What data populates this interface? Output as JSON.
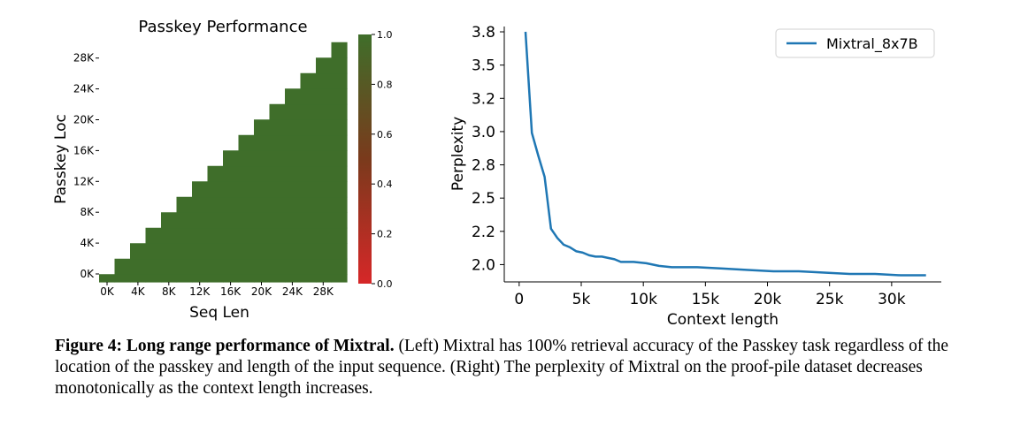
{
  "chart_data": [
    {
      "type": "heatmap",
      "title": "Passkey Performance",
      "xlabel": "Seq Len",
      "ylabel": "Passkey Loc",
      "x_ticks": [
        "0K",
        "4K",
        "8K",
        "12K",
        "16K",
        "20K",
        "24K",
        "28K"
      ],
      "y_ticks": [
        "0K",
        "4K",
        "8K",
        "12K",
        "16K",
        "20K",
        "24K",
        "28K"
      ],
      "x_bins": [
        0,
        2000,
        4000,
        6000,
        8000,
        10000,
        12000,
        14000,
        16000,
        18000,
        20000,
        22000,
        24000,
        26000,
        28000,
        30000,
        32000
      ],
      "y_bins": [
        0,
        1000,
        3000,
        5000,
        7000,
        9000,
        11000,
        13000,
        15000,
        17000,
        19000,
        21000,
        23000,
        25000,
        27000,
        29000,
        31000,
        32000
      ],
      "value": 1.0,
      "colorbar": {
        "ticks": [
          "0.0",
          "0.2",
          "0.4",
          "0.6",
          "0.8",
          "1.0"
        ],
        "range": [
          0,
          1
        ],
        "low_color": "#d62728",
        "high_color": "#3f6e2a"
      },
      "cell_color": "#3f6e2a"
    },
    {
      "type": "line",
      "xlabel": "Context length",
      "ylabel": "Perplexity",
      "x_ticks": [
        {
          "v": 0,
          "label": "0"
        },
        {
          "v": 5000,
          "label": "5k"
        },
        {
          "v": 10000,
          "label": "10k"
        },
        {
          "v": 15000,
          "label": "15k"
        },
        {
          "v": 20000,
          "label": "20k"
        },
        {
          "v": 25000,
          "label": "25k"
        },
        {
          "v": 30000,
          "label": "30k"
        }
      ],
      "y_ticks": [
        {
          "v": 2.0,
          "label": "2.0"
        },
        {
          "v": 2.25,
          "label": "2.2"
        },
        {
          "v": 2.5,
          "label": "2.5"
        },
        {
          "v": 2.75,
          "label": "2.8"
        },
        {
          "v": 3.0,
          "label": "3.0"
        },
        {
          "v": 3.25,
          "label": "3.2"
        },
        {
          "v": 3.5,
          "label": "3.5"
        },
        {
          "v": 3.75,
          "label": "3.8"
        }
      ],
      "xlim": [
        -1200,
        34000
      ],
      "ylim": [
        1.87,
        3.79
      ],
      "legend": "top-right",
      "series": [
        {
          "name": "Mixtral_8x7B",
          "color": "#1f77b4",
          "x": [
            512,
            1024,
            1536,
            2048,
            2560,
            3072,
            3584,
            4096,
            4608,
            5120,
            5632,
            6144,
            6656,
            7168,
            7680,
            8192,
            9216,
            10240,
            11264,
            12288,
            14336,
            16384,
            18432,
            20480,
            22528,
            24576,
            26624,
            28672,
            30720,
            32768
          ],
          "y": [
            3.75,
            2.99,
            2.82,
            2.66,
            2.27,
            2.2,
            2.15,
            2.13,
            2.1,
            2.09,
            2.07,
            2.06,
            2.06,
            2.05,
            2.04,
            2.02,
            2.02,
            2.01,
            1.99,
            1.98,
            1.98,
            1.97,
            1.96,
            1.95,
            1.95,
            1.94,
            1.93,
            1.93,
            1.92,
            1.92
          ]
        }
      ]
    }
  ],
  "caption": {
    "bold": "Figure 4: Long range performance of Mixtral.",
    "text": " (Left) Mixtral has 100% retrieval accuracy of the Passkey task regardless of the location of the passkey and length of the input sequence. (Right) The perplexity of Mixtral on the proof-pile dataset decreases monotonically as the context length increases."
  }
}
